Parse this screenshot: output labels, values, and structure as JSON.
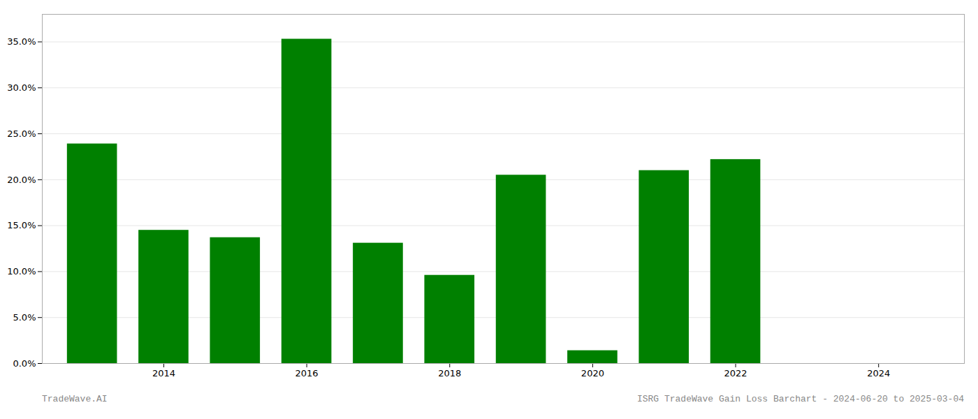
{
  "chart_data": {
    "type": "bar",
    "x": [
      2013,
      2014,
      2015,
      2016,
      2017,
      2018,
      2019,
      2020,
      2021,
      2022,
      2023
    ],
    "values": [
      0.239,
      0.145,
      0.137,
      0.353,
      0.131,
      0.096,
      0.205,
      0.014,
      0.21,
      0.222,
      0.0
    ],
    "color": "#008000",
    "xlim": [
      2012.3,
      2025.2
    ],
    "xticks": [
      2014,
      2016,
      2018,
      2020,
      2022,
      2024
    ],
    "ylim": [
      0,
      0.38
    ],
    "yticks": [
      {
        "value": 0.0,
        "label": "0.0%"
      },
      {
        "value": 0.05,
        "label": "5.0%"
      },
      {
        "value": 0.1,
        "label": "10.0%"
      },
      {
        "value": 0.15,
        "label": "15.0%"
      },
      {
        "value": 0.2,
        "label": "20.0%"
      },
      {
        "value": 0.25,
        "label": "25.0%"
      },
      {
        "value": 0.3,
        "label": "30.0%"
      },
      {
        "value": 0.35,
        "label": "35.0%"
      }
    ],
    "grid": true,
    "annotations": [
      "TradeWave.AI",
      "ISRG TradeWave Gain Loss Barchart - 2024-06-20 to 2025-03-04"
    ]
  }
}
